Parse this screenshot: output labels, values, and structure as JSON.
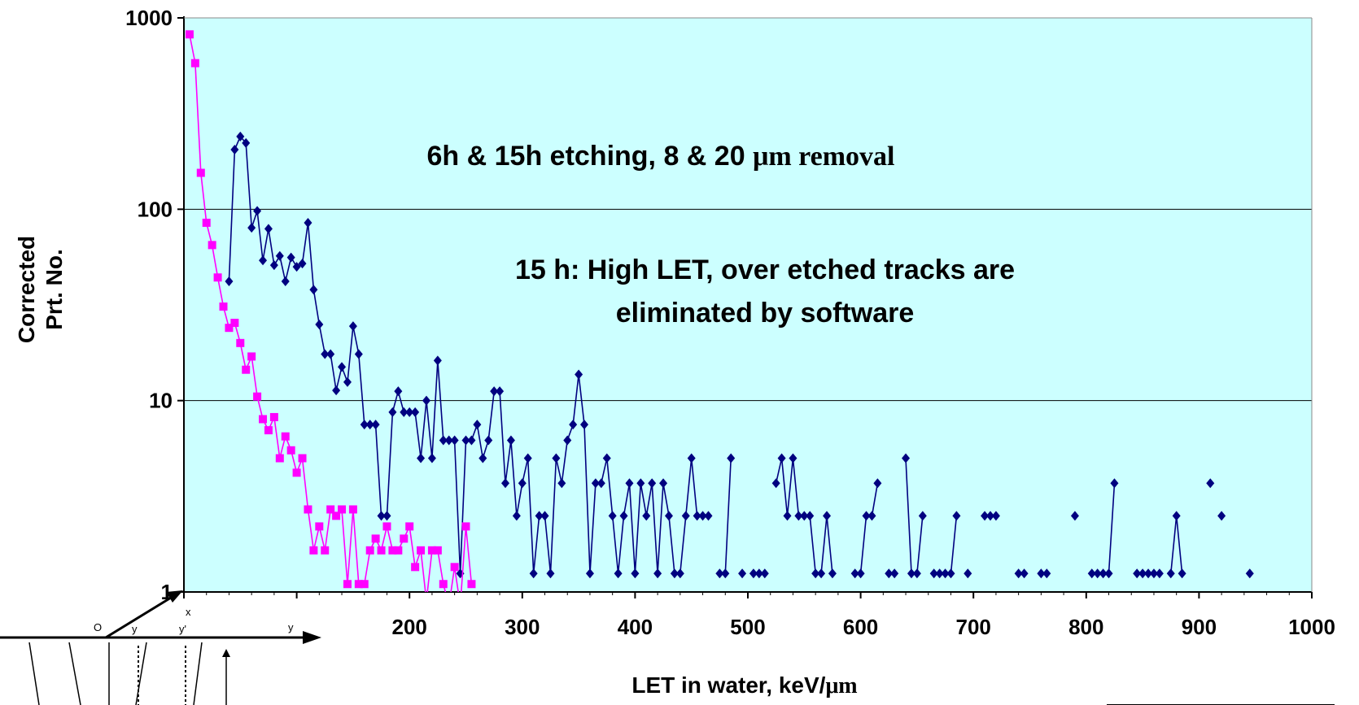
{
  "chart_data": {
    "type": "line",
    "y_scale": "log",
    "ylim": [
      1,
      1000
    ],
    "xlim": [
      0,
      1000
    ],
    "yticks": [
      "1",
      "10",
      "100",
      "1000"
    ],
    "xticks": [
      "200",
      "300",
      "400",
      "500",
      "600",
      "700",
      "800",
      "900",
      "1000"
    ],
    "xlabel": {
      "main": "LET in water, keV/",
      "unit": "μm"
    },
    "ylabel": [
      "Corrected",
      "Prt. No."
    ],
    "grid": "horizontal major",
    "plot_background": "#ccffff",
    "annotations": [
      {
        "id": "ann1",
        "parts": [
          {
            "text": "6h & 15h etching, 8 & 20 ",
            "serif": false
          },
          {
            "text": "μm removal",
            "serif": true
          }
        ]
      },
      {
        "id": "ann2",
        "parts": [
          {
            "text": "15 h: High LET, over etched tracks are",
            "serif": false
          }
        ]
      },
      {
        "id": "ann3",
        "parts": [
          {
            "text": "eliminated by software",
            "serif": false
          }
        ]
      }
    ],
    "series": [
      {
        "color": "#000080",
        "marker": "diamond",
        "points": [
          [
            40,
            42
          ],
          [
            45,
            205
          ],
          [
            50,
            240
          ],
          [
            55,
            222
          ],
          [
            60,
            80
          ],
          [
            65,
            98
          ],
          [
            70,
            54
          ],
          [
            75,
            79
          ],
          [
            80,
            51
          ],
          [
            85,
            57
          ],
          [
            90,
            42
          ],
          [
            95,
            56
          ],
          [
            100,
            50
          ],
          [
            105,
            52
          ],
          [
            110,
            85
          ],
          [
            115,
            38
          ],
          [
            120,
            25
          ],
          [
            125,
            17.5
          ],
          [
            130,
            17.5
          ],
          [
            135,
            11.3
          ],
          [
            140,
            15
          ],
          [
            145,
            12.5
          ],
          [
            150,
            24.5
          ],
          [
            155,
            17.5
          ],
          [
            160,
            7.5
          ],
          [
            165,
            7.5
          ],
          [
            170,
            7.5
          ],
          [
            175,
            2.5
          ],
          [
            180,
            2.5
          ],
          [
            185,
            8.7
          ],
          [
            190,
            11.2
          ],
          [
            195,
            8.7
          ],
          [
            200,
            8.7
          ],
          [
            205,
            8.7
          ],
          [
            210,
            5
          ],
          [
            215,
            10
          ],
          [
            220,
            5
          ],
          [
            225,
            16.2
          ],
          [
            230,
            6.2
          ],
          [
            235,
            6.2
          ],
          [
            240,
            6.2
          ],
          [
            245,
            1.25
          ],
          [
            250,
            6.2
          ],
          [
            255,
            6.2
          ],
          [
            260,
            7.5
          ],
          [
            265,
            5
          ],
          [
            270,
            6.2
          ],
          [
            275,
            11.2
          ],
          [
            280,
            11.2
          ],
          [
            285,
            3.7
          ],
          [
            290,
            6.2
          ],
          [
            295,
            2.5
          ],
          [
            300,
            3.7
          ],
          [
            305,
            5
          ],
          [
            310,
            1.25
          ],
          [
            315,
            2.5
          ],
          [
            320,
            2.5
          ],
          [
            325,
            1.25
          ],
          [
            330,
            5
          ],
          [
            335,
            3.7
          ],
          [
            340,
            6.2
          ],
          [
            345,
            7.5
          ],
          [
            350,
            13.7
          ],
          [
            355,
            7.5
          ],
          [
            360,
            1.25
          ],
          [
            365,
            3.7
          ],
          [
            370,
            3.7
          ],
          [
            375,
            5
          ],
          [
            380,
            2.5
          ],
          [
            385,
            1.25
          ],
          [
            390,
            2.5
          ],
          [
            395,
            3.7
          ],
          [
            400,
            1.25
          ],
          [
            405,
            3.7
          ],
          [
            410,
            2.5
          ],
          [
            415,
            3.7
          ],
          [
            420,
            1.25
          ],
          [
            425,
            3.7
          ],
          [
            430,
            2.5
          ],
          [
            435,
            1.25
          ],
          [
            440,
            1.25
          ],
          [
            445,
            2.5
          ],
          [
            450,
            5
          ],
          [
            455,
            2.5
          ],
          [
            460,
            2.5
          ],
          [
            465,
            2.5
          ],
          [
            470,
            null
          ],
          [
            475,
            1.25
          ],
          [
            480,
            1.25
          ],
          [
            485,
            5
          ],
          [
            490,
            null
          ],
          [
            495,
            1.25
          ],
          [
            500,
            null
          ],
          [
            505,
            1.25
          ],
          [
            510,
            1.25
          ],
          [
            515,
            1.25
          ],
          [
            520,
            null
          ],
          [
            525,
            3.7
          ],
          [
            530,
            5
          ],
          [
            535,
            2.5
          ],
          [
            540,
            5
          ],
          [
            545,
            2.5
          ],
          [
            550,
            2.5
          ],
          [
            555,
            2.5
          ],
          [
            560,
            1.25
          ],
          [
            565,
            1.25
          ],
          [
            570,
            2.5
          ],
          [
            575,
            1.25
          ],
          [
            580,
            null
          ],
          [
            585,
            null
          ],
          [
            590,
            null
          ],
          [
            595,
            1.25
          ],
          [
            600,
            1.25
          ],
          [
            605,
            2.5
          ],
          [
            610,
            2.5
          ],
          [
            615,
            3.7
          ],
          [
            620,
            null
          ],
          [
            625,
            1.25
          ],
          [
            630,
            1.25
          ],
          [
            635,
            null
          ],
          [
            640,
            5
          ],
          [
            645,
            1.25
          ],
          [
            650,
            1.25
          ],
          [
            655,
            2.5
          ],
          [
            660,
            null
          ],
          [
            665,
            1.25
          ],
          [
            670,
            1.25
          ],
          [
            675,
            1.25
          ],
          [
            680,
            1.25
          ],
          [
            685,
            2.5
          ],
          [
            690,
            null
          ],
          [
            695,
            1.25
          ],
          [
            700,
            null
          ],
          [
            705,
            null
          ],
          [
            710,
            2.5
          ],
          [
            715,
            2.5
          ],
          [
            720,
            2.5
          ],
          [
            725,
            null
          ],
          [
            730,
            null
          ],
          [
            735,
            null
          ],
          [
            740,
            1.25
          ],
          [
            745,
            1.25
          ],
          [
            750,
            null
          ],
          [
            755,
            null
          ],
          [
            760,
            1.25
          ],
          [
            765,
            1.25
          ],
          [
            770,
            null
          ],
          [
            775,
            null
          ],
          [
            780,
            null
          ],
          [
            785,
            null
          ],
          [
            790,
            2.5
          ],
          [
            795,
            null
          ],
          [
            800,
            null
          ],
          [
            805,
            1.25
          ],
          [
            810,
            1.25
          ],
          [
            815,
            1.25
          ],
          [
            820,
            1.25
          ],
          [
            825,
            3.7
          ],
          [
            830,
            null
          ],
          [
            835,
            null
          ],
          [
            840,
            null
          ],
          [
            845,
            1.25
          ],
          [
            850,
            1.25
          ],
          [
            855,
            1.25
          ],
          [
            860,
            1.25
          ],
          [
            865,
            1.25
          ],
          [
            870,
            null
          ],
          [
            875,
            1.25
          ],
          [
            880,
            2.5
          ],
          [
            885,
            1.25
          ],
          [
            890,
            null
          ],
          [
            895,
            null
          ],
          [
            900,
            null
          ],
          [
            905,
            null
          ],
          [
            910,
            3.7
          ],
          [
            915,
            null
          ],
          [
            920,
            2.5
          ],
          [
            925,
            null
          ],
          [
            930,
            null
          ],
          [
            935,
            null
          ],
          [
            940,
            null
          ],
          [
            945,
            1.25
          ]
        ]
      },
      {
        "color": "#ff00ff",
        "marker": "square",
        "points": [
          [
            5,
            820
          ],
          [
            10,
            580
          ],
          [
            15,
            155
          ],
          [
            20,
            85
          ],
          [
            25,
            65
          ],
          [
            30,
            44
          ],
          [
            35,
            31
          ],
          [
            40,
            24
          ],
          [
            45,
            25.5
          ],
          [
            50,
            20
          ],
          [
            55,
            14.5
          ],
          [
            60,
            17
          ],
          [
            65,
            10.5
          ],
          [
            70,
            8
          ],
          [
            75,
            7
          ],
          [
            80,
            8.2
          ],
          [
            85,
            5
          ],
          [
            90,
            6.5
          ],
          [
            95,
            5.5
          ],
          [
            100,
            4.2
          ],
          [
            105,
            5
          ],
          [
            110,
            2.7
          ],
          [
            115,
            1.65
          ],
          [
            120,
            2.2
          ],
          [
            125,
            1.65
          ],
          [
            130,
            2.7
          ],
          [
            135,
            2.5
          ],
          [
            140,
            2.7
          ],
          [
            145,
            1.1
          ],
          [
            150,
            2.7
          ],
          [
            155,
            1.1
          ],
          [
            160,
            1.1
          ],
          [
            165,
            1.65
          ],
          [
            170,
            1.9
          ],
          [
            175,
            1.65
          ],
          [
            180,
            2.2
          ],
          [
            185,
            1.65
          ],
          [
            190,
            1.65
          ],
          [
            195,
            1.9
          ],
          [
            200,
            2.2
          ],
          [
            205,
            1.35
          ],
          [
            210,
            1.65
          ],
          [
            215,
            0.9
          ],
          [
            220,
            1.65
          ],
          [
            225,
            1.65
          ],
          [
            230,
            1.1
          ],
          [
            235,
            0.85
          ],
          [
            240,
            1.35
          ],
          [
            245,
            0.85
          ],
          [
            250,
            2.2
          ],
          [
            255,
            1.1
          ]
        ]
      }
    ]
  }
}
